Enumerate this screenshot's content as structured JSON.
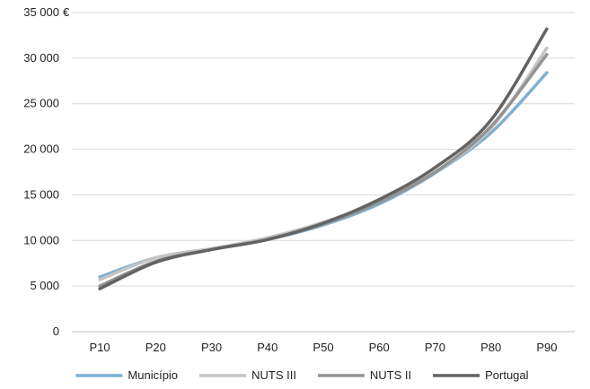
{
  "chart_data": {
    "type": "line",
    "title": "",
    "xlabel": "",
    "ylabel": "",
    "categories": [
      "P10",
      "P20",
      "P30",
      "P40",
      "P50",
      "P60",
      "P70",
      "P80",
      "P90"
    ],
    "ylim": [
      0,
      35000
    ],
    "yticks": [
      0,
      5000,
      10000,
      15000,
      20000,
      25000,
      30000,
      35000
    ],
    "ytick_labels": [
      "0",
      "5 000",
      "10 000",
      "15 000",
      "20 000",
      "25 000",
      "30 000",
      "35 000"
    ],
    "y_unit": "€",
    "grid": true,
    "legend_position": "bottom",
    "series": [
      {
        "name": "Município",
        "color": "#7eb0d2",
        "values": [
          6000,
          8100,
          9100,
          10100,
          11700,
          14000,
          17400,
          21800,
          28400
        ]
      },
      {
        "name": "NUTS III",
        "color": "#c4c4c4",
        "values": [
          5700,
          8100,
          9100,
          10300,
          12000,
          14300,
          17500,
          22300,
          31100
        ]
      },
      {
        "name": "NUTS II",
        "color": "#939393",
        "values": [
          5000,
          7700,
          9000,
          10100,
          11800,
          14200,
          17500,
          22500,
          30400
        ]
      },
      {
        "name": "Portugal",
        "color": "#636363",
        "values": [
          4700,
          7600,
          9000,
          10100,
          11900,
          14500,
          18000,
          23200,
          33200
        ]
      }
    ]
  }
}
